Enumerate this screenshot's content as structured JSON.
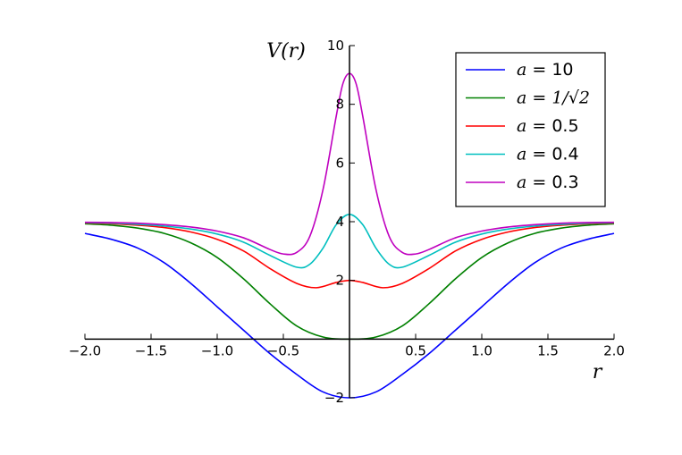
{
  "chart_data": {
    "type": "line",
    "title": "",
    "xlabel": "r",
    "ylabel": "V(r)",
    "xlim": [
      -2.0,
      2.0
    ],
    "ylim": [
      -2,
      10
    ],
    "xticks": [
      "−2.0",
      "−1.5",
      "−1.0",
      "−0.5",
      "0.5",
      "1.0",
      "1.5",
      "2.0"
    ],
    "xtick_values": [
      -2.0,
      -1.5,
      -1.0,
      -0.5,
      0.5,
      1.0,
      1.5,
      2.0
    ],
    "yticks": [
      "−2",
      "2",
      "4",
      "6",
      "8",
      "10"
    ],
    "ytick_values": [
      -2,
      2,
      4,
      6,
      8,
      10
    ],
    "grid": false,
    "legend_position": "top-right",
    "series": [
      {
        "name": "a = 10",
        "color": "#0000ff",
        "x": [
          -2.0,
          -1.8,
          -1.6,
          -1.4,
          -1.2,
          -1.0,
          -0.8,
          -0.6,
          -0.4,
          -0.2,
          0.0,
          0.2,
          0.4,
          0.6,
          0.8,
          1.0,
          1.2,
          1.4,
          1.6,
          1.8,
          2.0
        ],
        "y": [
          3.6,
          3.4,
          3.1,
          2.6,
          1.9,
          1.1,
          0.3,
          -0.5,
          -1.2,
          -1.8,
          -2.0,
          -1.8,
          -1.2,
          -0.5,
          0.3,
          1.1,
          1.9,
          2.6,
          3.1,
          3.4,
          3.6
        ]
      },
      {
        "name": "a = 1/√2",
        "color": "#008000",
        "x": [
          -2.0,
          -1.8,
          -1.6,
          -1.4,
          -1.2,
          -1.0,
          -0.8,
          -0.6,
          -0.4,
          -0.2,
          0.0,
          0.2,
          0.4,
          0.6,
          0.8,
          1.0,
          1.2,
          1.4,
          1.6,
          1.8,
          2.0
        ],
        "y": [
          3.93,
          3.88,
          3.78,
          3.6,
          3.28,
          2.78,
          2.05,
          1.2,
          0.45,
          0.07,
          0.0,
          0.07,
          0.45,
          1.2,
          2.05,
          2.78,
          3.28,
          3.6,
          3.78,
          3.88,
          3.93
        ]
      },
      {
        "name": "a = 0.5",
        "color": "#ff0000",
        "x": [
          -2.0,
          -1.8,
          -1.6,
          -1.4,
          -1.2,
          -1.0,
          -0.8,
          -0.6,
          -0.4,
          -0.25,
          -0.1,
          0.0,
          0.1,
          0.25,
          0.4,
          0.6,
          0.8,
          1.0,
          1.2,
          1.4,
          1.6,
          1.8,
          2.0
        ],
        "y": [
          3.96,
          3.93,
          3.88,
          3.8,
          3.65,
          3.4,
          3.0,
          2.4,
          1.9,
          1.75,
          1.93,
          2.0,
          1.93,
          1.75,
          1.9,
          2.4,
          3.0,
          3.4,
          3.65,
          3.8,
          3.88,
          3.93,
          3.96
        ]
      },
      {
        "name": "a = 0.4",
        "color": "#00bfbf",
        "x": [
          -2.0,
          -1.8,
          -1.6,
          -1.4,
          -1.2,
          -1.0,
          -0.8,
          -0.6,
          -0.4,
          -0.3,
          -0.2,
          -0.1,
          0.0,
          0.1,
          0.2,
          0.3,
          0.4,
          0.6,
          0.8,
          1.0,
          1.2,
          1.4,
          1.6,
          1.8,
          2.0
        ],
        "y": [
          3.97,
          3.95,
          3.91,
          3.85,
          3.75,
          3.58,
          3.3,
          2.85,
          2.45,
          2.55,
          3.1,
          3.9,
          4.25,
          3.9,
          3.1,
          2.55,
          2.45,
          2.85,
          3.3,
          3.58,
          3.75,
          3.85,
          3.91,
          3.95,
          3.97
        ]
      },
      {
        "name": "a = 0.3",
        "color": "#bf00bf",
        "x": [
          -2.0,
          -1.8,
          -1.6,
          -1.4,
          -1.2,
          -1.0,
          -0.8,
          -0.6,
          -0.5,
          -0.4,
          -0.3,
          -0.2,
          -0.1,
          -0.05,
          0.0,
          0.05,
          0.1,
          0.2,
          0.3,
          0.4,
          0.5,
          0.6,
          0.8,
          1.0,
          1.2,
          1.4,
          1.6,
          1.8,
          2.0
        ],
        "y": [
          3.98,
          3.97,
          3.95,
          3.9,
          3.82,
          3.68,
          3.45,
          3.05,
          2.9,
          2.95,
          3.5,
          5.1,
          7.6,
          8.7,
          9.05,
          8.7,
          7.6,
          5.1,
          3.5,
          2.95,
          2.9,
          3.05,
          3.45,
          3.68,
          3.82,
          3.9,
          3.95,
          3.97,
          3.98
        ]
      }
    ],
    "legend": [
      {
        "label_prefix": "a",
        "label_eq": "=",
        "label_val": "10",
        "color": "#0000ff"
      },
      {
        "label_prefix": "a",
        "label_eq": "=",
        "label_val": "1/√2",
        "color": "#008000"
      },
      {
        "label_prefix": "a",
        "label_eq": "=",
        "label_val": "0.5",
        "color": "#ff0000"
      },
      {
        "label_prefix": "a",
        "label_eq": "=",
        "label_val": "0.4",
        "color": "#00bfbf"
      },
      {
        "label_prefix": "a",
        "label_eq": "=",
        "label_val": "0.3",
        "color": "#bf00bf"
      }
    ]
  }
}
